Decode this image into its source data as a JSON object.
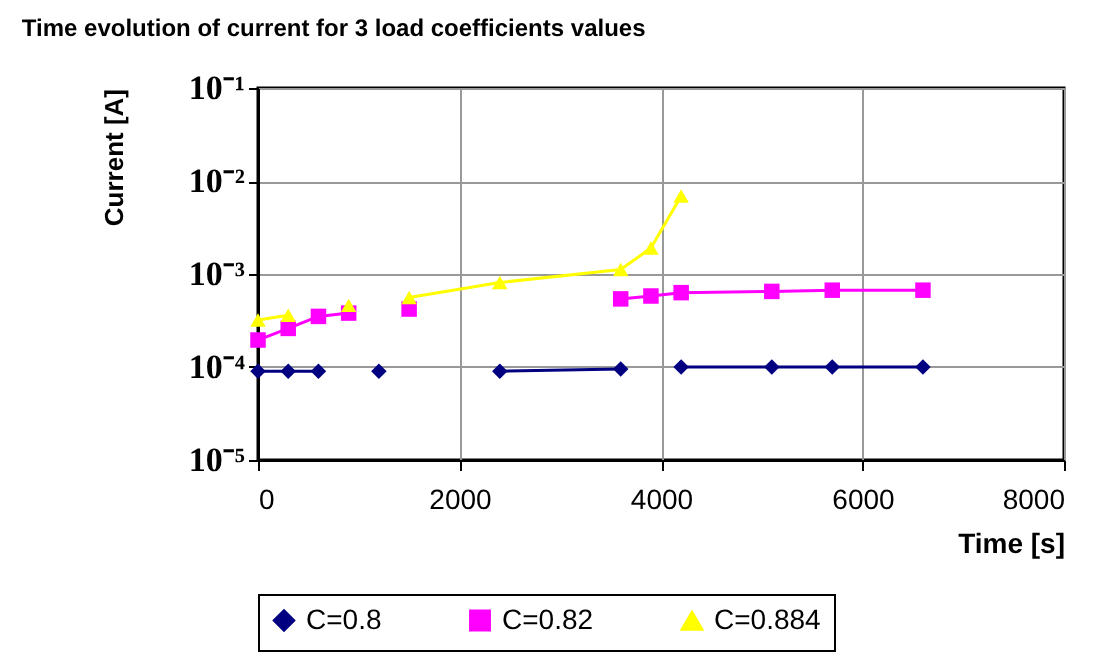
{
  "chart_data": {
    "type": "line",
    "title": "Time evolution of current for 3 load coefficients values",
    "xlabel": "Time [s]",
    "ylabel": "Current [A]",
    "x": [
      0,
      300,
      600,
      900,
      1200,
      1500,
      2400,
      3600,
      3900,
      4200,
      5100,
      5700,
      6600
    ],
    "series": [
      {
        "name": "C=0.8",
        "color": "#000080",
        "marker": "diamond",
        "values": [
          9e-05,
          9e-05,
          9e-05,
          null,
          9e-05,
          null,
          9e-05,
          9.5e-05,
          null,
          0.0001,
          0.0001,
          0.0001,
          0.0001
        ]
      },
      {
        "name": "C=0.82",
        "color": "#ff00ff",
        "marker": "square",
        "values": [
          0.000195,
          0.00026,
          0.00035,
          0.00038,
          null,
          0.00042,
          null,
          0.00054,
          0.00058,
          0.00063,
          0.00065,
          0.00067,
          0.00067
        ]
      },
      {
        "name": "C=0.884",
        "color": "#ffff00",
        "marker": "triangle",
        "values": [
          0.00032,
          0.00036,
          null,
          0.00046,
          null,
          0.00056,
          0.00081,
          0.00112,
          0.0019,
          0.0069,
          null,
          null,
          null
        ]
      }
    ],
    "xlim": [
      0,
      8000
    ],
    "xticks": [
      0,
      2000,
      4000,
      6000,
      8000
    ],
    "ylim": [
      1e-05,
      0.1
    ],
    "yticks": [
      {
        "value": 0.1,
        "label": "10⁻¹"
      },
      {
        "value": 0.01,
        "label": "10⁻²"
      },
      {
        "value": 0.001,
        "label": "10⁻³"
      },
      {
        "value": 0.0001,
        "label": "10⁻⁴"
      },
      {
        "value": 1e-05,
        "label": "10⁻⁵"
      }
    ],
    "log": "y",
    "grid": true,
    "legend": "bottom left",
    "line_style": "solid"
  }
}
